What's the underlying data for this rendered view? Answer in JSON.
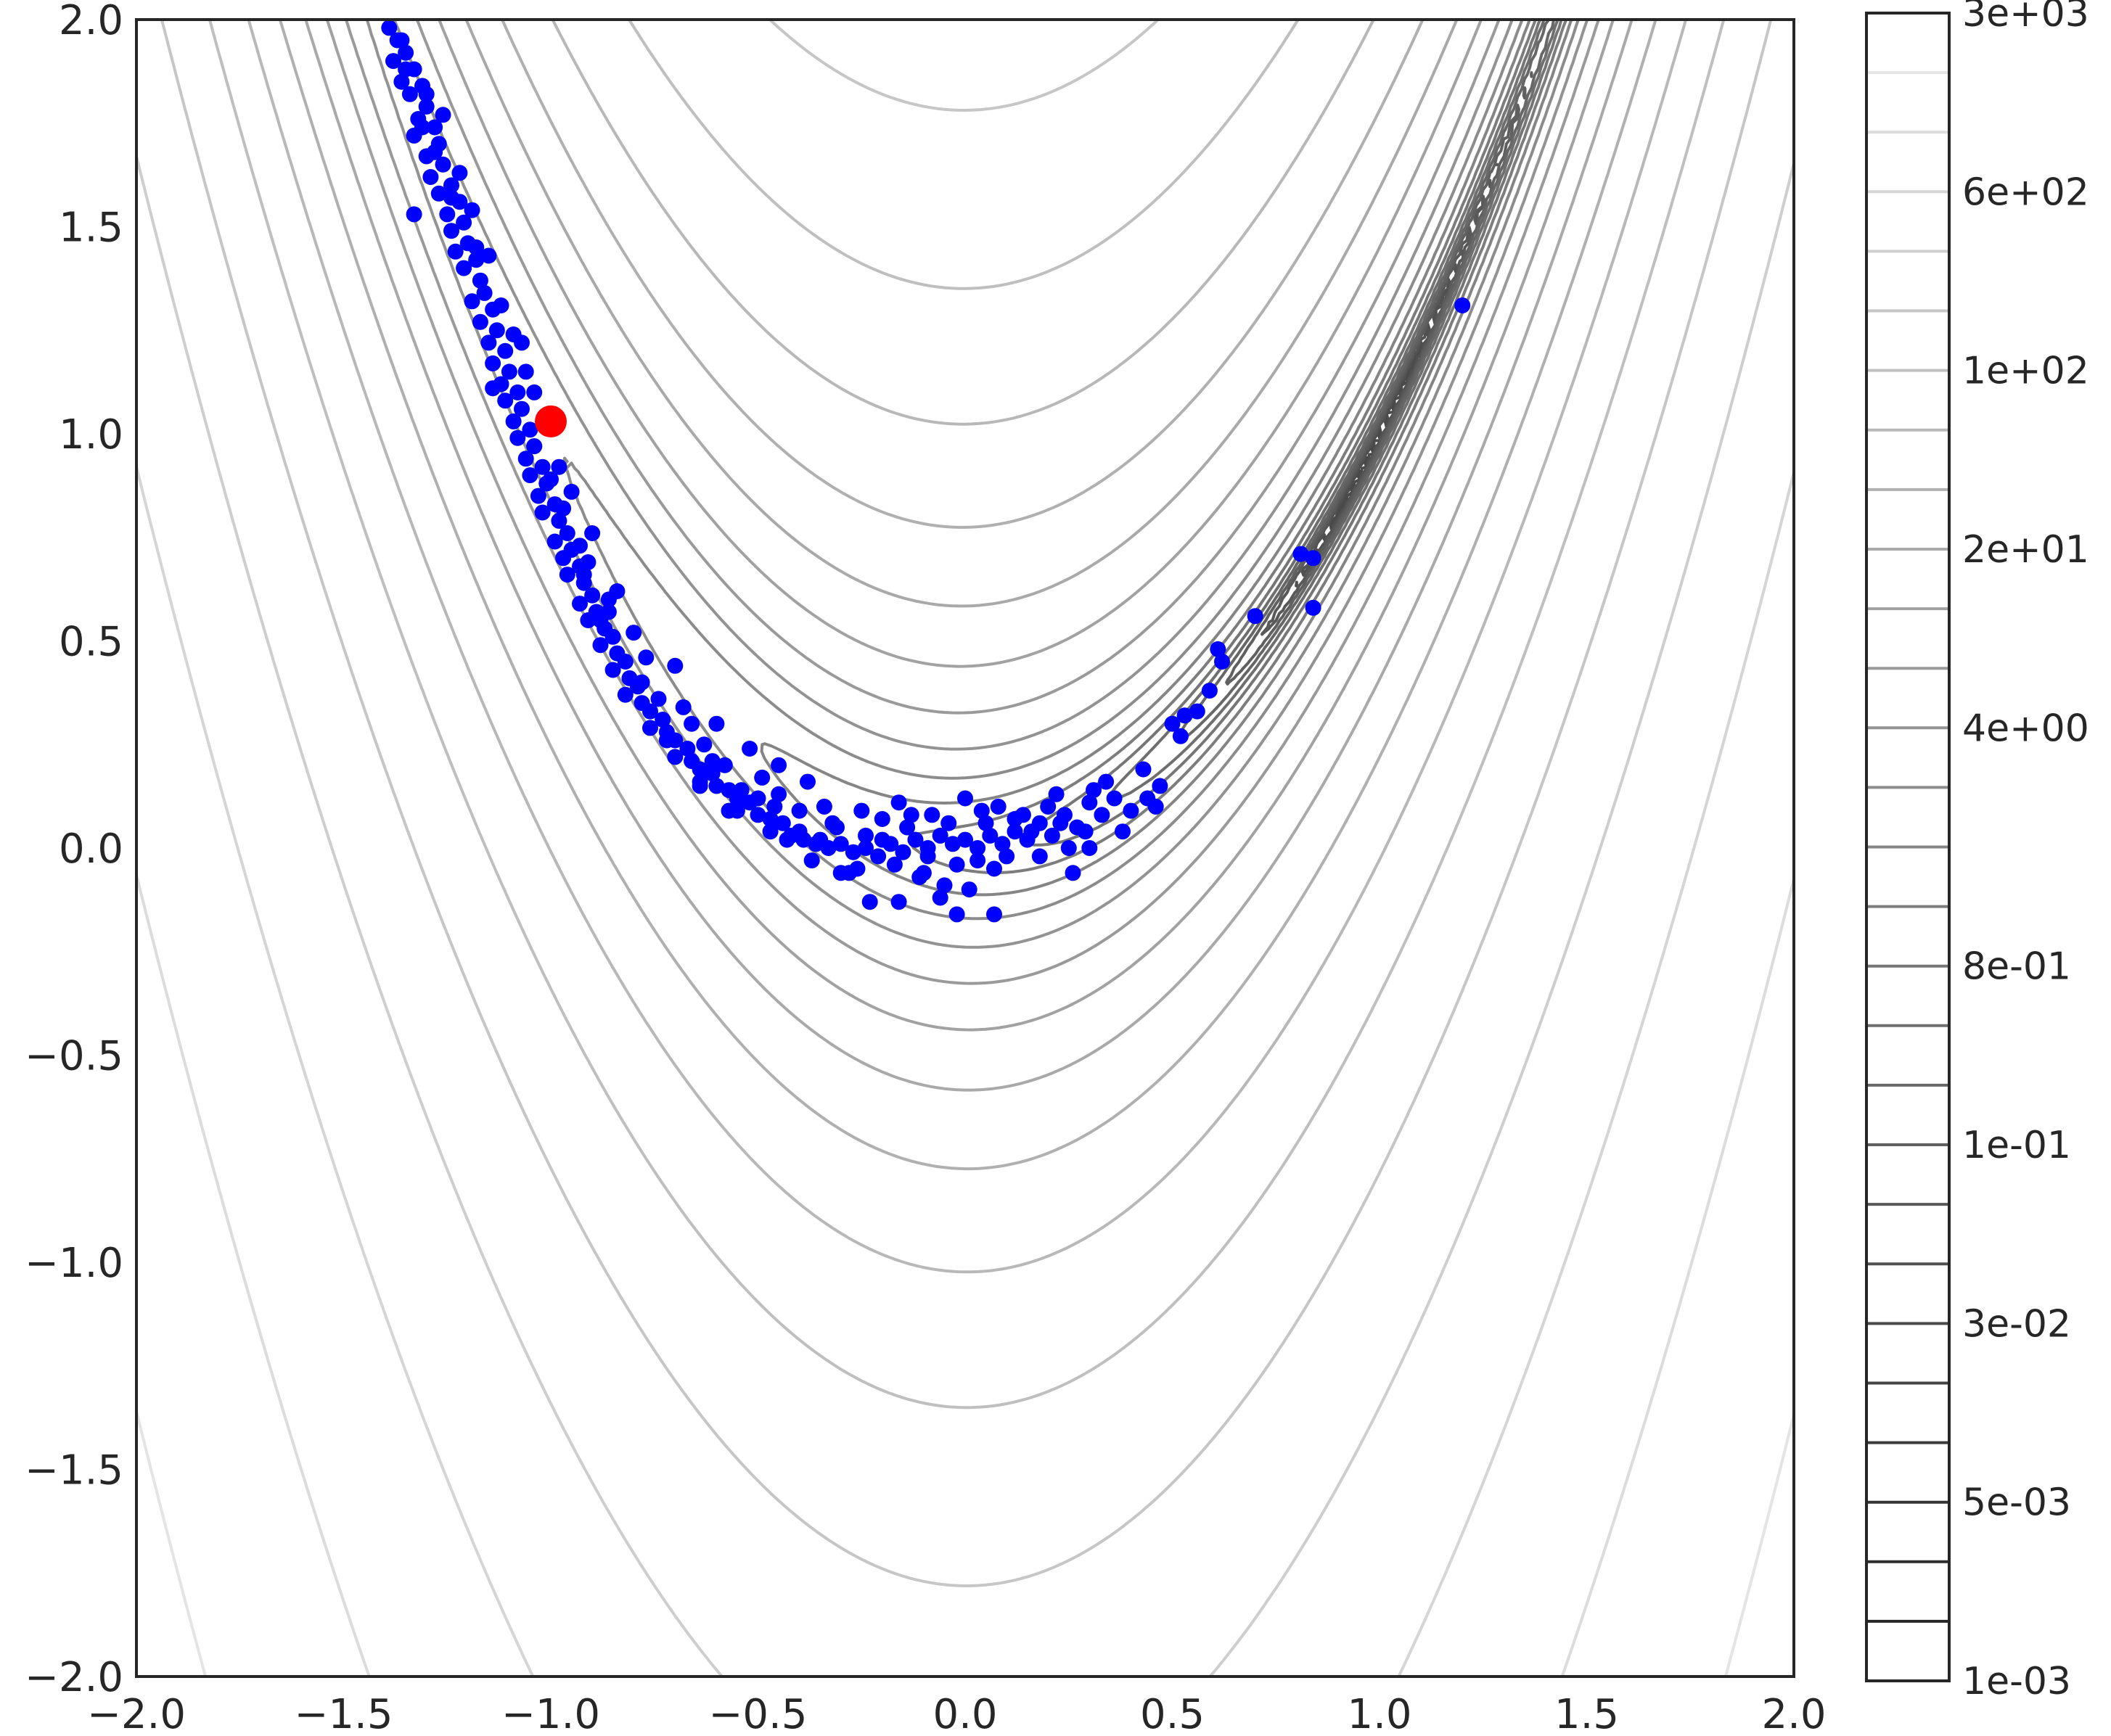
{
  "chart_data": {
    "type": "scatter",
    "title": "",
    "xlabel": "",
    "ylabel": "",
    "xlim": [
      -2.0,
      2.0
    ],
    "ylim": [
      -2.0,
      2.0
    ],
    "x_ticks": [
      "−2.0",
      "−1.5",
      "−1.0",
      "−0.5",
      "0.0",
      "0.5",
      "1.0",
      "1.5",
      "2.0"
    ],
    "y_ticks": [
      "−2.0",
      "−1.5",
      "−1.0",
      "−0.5",
      "0.0",
      "0.5",
      "1.0",
      "1.5",
      "2.0"
    ],
    "x_tick_values": [
      -2.0,
      -1.5,
      -1.0,
      -0.5,
      0.0,
      0.5,
      1.0,
      1.5,
      2.0
    ],
    "y_tick_values": [
      -2.0,
      -1.5,
      -1.0,
      -0.5,
      0.0,
      0.5,
      1.0,
      1.5,
      2.0
    ],
    "background_contours": {
      "function": "(1 - x)^2 + 100 (y - x^2)^2",
      "log_spaced_levels": true,
      "level_min": 0.001,
      "level_max": 5000,
      "n_levels": 29,
      "colormap": "gray_r"
    },
    "colorbar": {
      "tick_labels": [
        "3e+03",
        "6e+02",
        "1e+02",
        "2e+01",
        "4e+00",
        "8e-01",
        "1e-01",
        "3e-02",
        "5e-03",
        "1e-03"
      ]
    },
    "grid": false,
    "legend": "none",
    "series": [
      {
        "color": "#0000ff",
        "points": [
          [
            -1.39,
            1.98
          ],
          [
            -1.37,
            1.95
          ],
          [
            -1.35,
            1.92
          ],
          [
            -1.38,
            1.9
          ],
          [
            -1.33,
            1.88
          ],
          [
            -1.36,
            1.85
          ],
          [
            -1.31,
            1.84
          ],
          [
            -1.34,
            1.82
          ],
          [
            -1.3,
            1.79
          ],
          [
            -1.32,
            1.76
          ],
          [
            -1.28,
            1.74
          ],
          [
            -1.33,
            1.72
          ],
          [
            -1.27,
            1.7
          ],
          [
            -1.3,
            1.67
          ],
          [
            -1.26,
            1.65
          ],
          [
            -1.29,
            1.62
          ],
          [
            -1.24,
            1.6
          ],
          [
            -1.27,
            1.58
          ],
          [
            -1.22,
            1.56
          ],
          [
            -1.25,
            1.53
          ],
          [
            -1.33,
            1.53
          ],
          [
            -1.21,
            1.51
          ],
          [
            -1.24,
            1.49
          ],
          [
            -1.2,
            1.46
          ],
          [
            -1.23,
            1.44
          ],
          [
            -1.18,
            1.42
          ],
          [
            -1.21,
            1.4
          ],
          [
            -1.17,
            1.37
          ],
          [
            -1.16,
            1.34
          ],
          [
            -1.19,
            1.32
          ],
          [
            -1.14,
            1.3
          ],
          [
            -1.17,
            1.27
          ],
          [
            -1.13,
            1.25
          ],
          [
            -1.15,
            1.22
          ],
          [
            -1.11,
            1.2
          ],
          [
            -1.14,
            1.17
          ],
          [
            -1.1,
            1.15
          ],
          [
            -1.12,
            1.12
          ],
          [
            -1.08,
            1.1
          ],
          [
            -1.11,
            1.08
          ],
          [
            -1.07,
            1.06
          ],
          [
            -1.09,
            1.03
          ],
          [
            -1.05,
            1.01
          ],
          [
            -1.08,
            0.99
          ],
          [
            -1.04,
            0.97
          ],
          [
            -1.06,
            0.94
          ],
          [
            -1.02,
            0.92
          ],
          [
            -1.05,
            0.9
          ],
          [
            -1.01,
            0.88
          ],
          [
            -1.03,
            0.85
          ],
          [
            -0.99,
            0.83
          ],
          [
            -1.02,
            0.81
          ],
          [
            -0.98,
            0.79
          ],
          [
            -0.96,
            0.76
          ],
          [
            -0.99,
            0.74
          ],
          [
            -0.95,
            0.72
          ],
          [
            -0.97,
            0.7
          ],
          [
            -0.93,
            0.68
          ],
          [
            -0.96,
            0.66
          ],
          [
            -0.92,
            0.64
          ],
          [
            -0.9,
            0.61
          ],
          [
            -0.93,
            0.59
          ],
          [
            -0.89,
            0.57
          ],
          [
            -0.91,
            0.55
          ],
          [
            -0.87,
            0.53
          ],
          [
            -0.85,
            0.51
          ],
          [
            -0.88,
            0.49
          ],
          [
            -0.84,
            0.47
          ],
          [
            -0.82,
            0.45
          ],
          [
            -0.85,
            0.43
          ],
          [
            -0.81,
            0.41
          ],
          [
            -0.79,
            0.39
          ],
          [
            -0.82,
            0.37
          ],
          [
            -0.78,
            0.35
          ],
          [
            -0.76,
            0.33
          ],
          [
            -0.73,
            0.31
          ],
          [
            -0.76,
            0.29
          ],
          [
            -0.72,
            0.28
          ],
          [
            -0.7,
            0.26
          ],
          [
            -0.67,
            0.24
          ],
          [
            -0.7,
            0.22
          ],
          [
            -0.66,
            0.21
          ],
          [
            -0.64,
            0.19
          ],
          [
            -0.61,
            0.18
          ],
          [
            -0.64,
            0.16
          ],
          [
            -0.6,
            0.15
          ],
          [
            -0.57,
            0.14
          ],
          [
            -0.55,
            0.12
          ],
          [
            -0.52,
            0.11
          ],
          [
            -0.55,
            0.09
          ],
          [
            -0.5,
            0.08
          ],
          [
            -0.47,
            0.07
          ],
          [
            -0.44,
            0.06
          ],
          [
            -0.47,
            0.04
          ],
          [
            -0.42,
            0.03
          ],
          [
            -0.39,
            0.02
          ],
          [
            -0.36,
            0.01
          ],
          [
            -0.33,
            0.0
          ],
          [
            -0.3,
            0.01
          ],
          [
            -0.27,
            -0.01
          ],
          [
            -0.24,
            0.0
          ],
          [
            -0.21,
            -0.02
          ],
          [
            -0.18,
            0.01
          ],
          [
            -0.15,
            -0.01
          ],
          [
            -0.12,
            0.02
          ],
          [
            -0.09,
            0.0
          ],
          [
            -0.06,
            0.03
          ],
          [
            -0.03,
            0.01
          ],
          [
            0.0,
            0.02
          ],
          [
            0.03,
            0.0
          ],
          [
            0.06,
            0.03
          ],
          [
            0.09,
            0.01
          ],
          [
            0.12,
            0.04
          ],
          [
            0.15,
            0.02
          ],
          [
            0.18,
            0.06
          ],
          [
            0.21,
            0.03
          ],
          [
            0.24,
            0.08
          ],
          [
            0.27,
            0.05
          ],
          [
            0.3,
            0.11
          ],
          [
            0.33,
            0.08
          ],
          [
            -0.8,
            0.52
          ],
          [
            -0.93,
            0.73
          ],
          [
            -0.63,
            0.25
          ],
          [
            -0.45,
            0.13
          ],
          [
            -0.37,
            -0.03
          ],
          [
            -0.26,
            -0.05
          ],
          [
            -0.2,
            0.07
          ],
          [
            -0.1,
            -0.06
          ],
          [
            -0.02,
            -0.04
          ],
          [
            0.05,
            0.06
          ],
          [
            0.1,
            -0.02
          ],
          [
            0.2,
            0.1
          ],
          [
            0.25,
            0.0
          ],
          [
            -0.68,
            0.34
          ],
          [
            -0.58,
            0.2
          ],
          [
            -0.4,
            0.09
          ],
          [
            -0.31,
            0.05
          ],
          [
            -0.14,
            0.05
          ],
          [
            -0.6,
            0.3
          ],
          [
            -0.52,
            0.24
          ],
          [
            -0.45,
            0.2
          ],
          [
            -0.7,
            0.44
          ],
          [
            -0.77,
            0.46
          ],
          [
            -0.86,
            0.6
          ],
          [
            -0.95,
            0.86
          ],
          [
            -1.15,
            1.43
          ],
          [
            -1.22,
            1.63
          ],
          [
            -1.3,
            1.82
          ],
          [
            -1.36,
            1.95
          ],
          [
            -1.04,
            1.1
          ],
          [
            -1.12,
            1.31
          ],
          [
            -0.98,
            0.92
          ],
          [
            -0.9,
            0.76
          ],
          [
            -0.84,
            0.62
          ],
          [
            -1.07,
            1.22
          ],
          [
            -1.19,
            1.54
          ],
          [
            -1.26,
            1.77
          ],
          [
            -0.34,
            0.1
          ],
          [
            -0.38,
            0.16
          ],
          [
            -0.43,
            0.02
          ],
          [
            -0.49,
            0.17
          ],
          [
            -0.57,
            0.09
          ],
          [
            -0.25,
            0.09
          ],
          [
            -0.16,
            0.11
          ],
          [
            -0.08,
            0.08
          ],
          [
            0.0,
            0.12
          ],
          [
            0.08,
            0.1
          ],
          [
            -0.28,
            -0.06
          ],
          [
            -0.17,
            -0.04
          ],
          [
            -0.05,
            -0.09
          ],
          [
            0.01,
            -0.1
          ],
          [
            0.14,
            0.08
          ],
          [
            0.22,
            0.13
          ],
          [
            0.29,
            0.04
          ],
          [
            0.36,
            0.12
          ],
          [
            0.4,
            0.09
          ],
          [
            0.43,
            0.19
          ],
          [
            0.47,
            0.15
          ],
          [
            0.5,
            0.3
          ],
          [
            0.53,
            0.32
          ],
          [
            0.56,
            0.33
          ],
          [
            0.59,
            0.38
          ],
          [
            0.62,
            0.45
          ],
          [
            0.61,
            0.48
          ],
          [
            0.52,
            0.27
          ],
          [
            0.46,
            0.1
          ],
          [
            0.38,
            0.04
          ],
          [
            0.26,
            -0.06
          ],
          [
            0.18,
            -0.02
          ],
          [
            0.12,
            0.07
          ],
          [
            0.07,
            -0.05
          ],
          [
            -0.11,
            -0.07
          ],
          [
            -0.23,
            -0.13
          ],
          [
            -0.06,
            -0.12
          ],
          [
            -0.02,
            -0.16
          ],
          [
            0.07,
            -0.16
          ],
          [
            -0.3,
            -0.06
          ],
          [
            -0.16,
            -0.13
          ],
          [
            0.7,
            0.56
          ],
          [
            0.81,
            0.71
          ],
          [
            0.84,
            0.7
          ],
          [
            0.84,
            0.58
          ],
          [
            1.2,
            1.31
          ],
          [
            -1.14,
            1.11
          ],
          [
            -1.0,
            0.89
          ],
          [
            -1.04,
            0.97
          ],
          [
            -0.72,
            0.26
          ],
          [
            -0.64,
            0.15
          ],
          [
            -0.54,
            0.14
          ],
          [
            -0.88,
            0.55
          ],
          [
            -0.92,
            0.66
          ],
          [
            -0.78,
            0.4
          ],
          [
            -0.66,
            0.3
          ],
          [
            -0.4,
            0.04
          ],
          [
            -0.35,
            0.02
          ],
          [
            -0.2,
            0.02
          ],
          [
            -0.09,
            -0.02
          ],
          [
            0.03,
            -0.03
          ],
          [
            -1.28,
            1.68
          ],
          [
            -1.35,
            1.88
          ],
          [
            -1.31,
            1.74
          ],
          [
            -1.24,
            1.57
          ],
          [
            -1.18,
            1.45
          ],
          [
            -1.09,
            1.24
          ],
          [
            -1.06,
            1.15
          ],
          [
            -0.97,
            0.82
          ],
          [
            -0.91,
            0.69
          ],
          [
            -0.86,
            0.57
          ],
          [
            -0.74,
            0.36
          ],
          [
            -0.61,
            0.21
          ],
          [
            -0.5,
            0.12
          ],
          [
            -0.46,
            0.1
          ],
          [
            -0.32,
            0.06
          ],
          [
            -0.24,
            0.03
          ],
          [
            -0.13,
            0.08
          ],
          [
            -0.04,
            0.06
          ],
          [
            0.04,
            0.09
          ],
          [
            0.16,
            0.04
          ],
          [
            0.23,
            0.06
          ],
          [
            0.3,
            0.0
          ],
          [
            0.34,
            0.16
          ],
          [
            0.44,
            0.12
          ],
          [
            0.31,
            0.14
          ]
        ]
      },
      {
        "color": "#ff0000",
        "points": [
          [
            -1.0,
            1.03
          ]
        ]
      }
    ]
  }
}
